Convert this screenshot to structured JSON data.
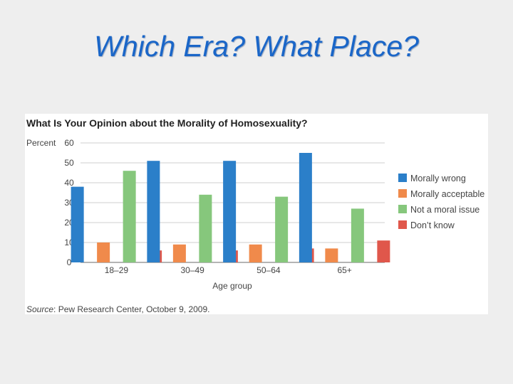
{
  "slide": {
    "title": "Which Era? What Place?"
  },
  "chart_data": {
    "type": "bar",
    "title": "What Is Your Opinion about the Morality of Homosexuality?",
    "ylabel": "Percent",
    "xlabel": "Age group",
    "ylim": [
      0,
      60
    ],
    "yticks": [
      0,
      10,
      20,
      30,
      40,
      50,
      60
    ],
    "grid": true,
    "legend_position": "right",
    "categories": [
      "18–29",
      "30–49",
      "50–64",
      "65+"
    ],
    "series": [
      {
        "name": "Morally wrong",
        "color": "#2b7fc9",
        "values": [
          38,
          51,
          51,
          55
        ]
      },
      {
        "name": "Morally acceptable",
        "color": "#f08a4b",
        "values": [
          10,
          9,
          9,
          7
        ]
      },
      {
        "name": "Not a moral issue",
        "color": "#86c77c",
        "values": [
          46,
          34,
          33,
          27
        ]
      },
      {
        "name": "Don’t know",
        "color": "#e0574b",
        "values": [
          6,
          6,
          7,
          11
        ]
      }
    ],
    "source_label": "Source",
    "source_text": ": Pew Research Center, October 9, 2009."
  }
}
